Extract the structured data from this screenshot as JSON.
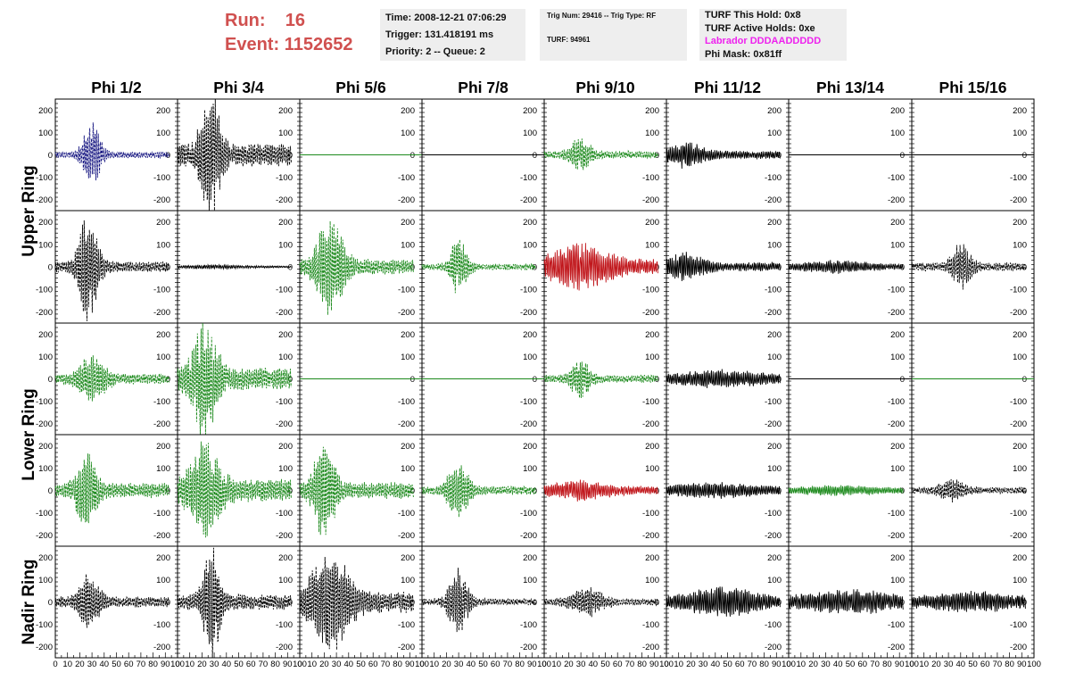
{
  "header": {
    "run_label": "Run:",
    "run_value": "16",
    "event_label": "Event:",
    "event_value": "1152652",
    "colors": {
      "run_event": "#d0504f",
      "labrador": "#ee22ee",
      "box_bg": "#eeeeee"
    }
  },
  "info_time": {
    "time": "Time: 2008-12-21 07:06:29",
    "trigger": "Trigger: 131.418191 ms",
    "priority": "Priority: 2 -- Queue: 2"
  },
  "info_trig": {
    "trig_line": "Trig Num: 29416 -- Trig Type: RF",
    "turf_line": "TURF: 94961"
  },
  "info_turf": {
    "this_hold": "TURF This Hold: 0x8",
    "active_holds": "TURF Active Holds: 0xe",
    "labrador": "Labrador DDDAADDDDD",
    "phi_mask": "Phi Mask: 0x81ff"
  },
  "chart_data": {
    "type": "line",
    "columns": [
      "Phi 1/2",
      "Phi 3/4",
      "Phi 5/6",
      "Phi 7/8",
      "Phi 9/10",
      "Phi 11/12",
      "Phi 13/14",
      "Phi 15/16"
    ],
    "ring_labels": [
      "Upper Ring",
      "Lower Ring",
      "Nadir Ring"
    ],
    "ylim": [
      -250,
      250
    ],
    "xlim": [
      0,
      100
    ],
    "y_ticks": [
      "200",
      "100",
      "0",
      "-100",
      "-200"
    ],
    "x_ticks": [
      "0",
      "10",
      "20",
      "30",
      "40",
      "50",
      "60",
      "70",
      "80",
      "90",
      "100"
    ],
    "series_colors": {
      "black": "#000000",
      "green": "#1d8a1d",
      "red": "#c0151a",
      "blue": "#141480"
    },
    "panels": [
      [
        {
          "style": "dashed",
          "color": "blue",
          "amp": 140,
          "peak": 30,
          "width": 8,
          "noise": 15
        },
        {
          "style": "dashed",
          "color": "black",
          "amp": 250,
          "peak": 27,
          "width": 9,
          "noise": 55
        },
        {
          "style": "flat",
          "color": "green",
          "amp": 0,
          "peak": 0,
          "width": 0,
          "noise": 0
        },
        {
          "style": "flat",
          "color": "black",
          "amp": 0,
          "peak": 0,
          "width": 0,
          "noise": 0
        },
        {
          "style": "dashed",
          "color": "green",
          "amp": 70,
          "peak": 30,
          "width": 9,
          "noise": 18
        },
        {
          "style": "solid",
          "color": "black",
          "amp": 50,
          "peak": 15,
          "width": 16,
          "noise": 18
        },
        {
          "style": "flat",
          "color": "black",
          "amp": 0,
          "peak": 0,
          "width": 0,
          "noise": 0
        },
        {
          "style": "flat",
          "color": "black",
          "amp": 0,
          "peak": 0,
          "width": 0,
          "noise": 0
        }
      ],
      [
        {
          "style": "dashed",
          "color": "black",
          "amp": 220,
          "peak": 27,
          "width": 9,
          "noise": 25
        },
        {
          "style": "solid",
          "color": "black",
          "amp": 6,
          "peak": 30,
          "width": 30,
          "noise": 4
        },
        {
          "style": "dashed",
          "color": "green",
          "amp": 200,
          "peak": 25,
          "width": 12,
          "noise": 35
        },
        {
          "style": "dashed",
          "color": "green",
          "amp": 120,
          "peak": 30,
          "width": 8,
          "noise": 15
        },
        {
          "style": "solid",
          "color": "red",
          "amp": 80,
          "peak": 30,
          "width": 25,
          "noise": 35
        },
        {
          "style": "solid",
          "color": "black",
          "amp": 50,
          "peak": 15,
          "width": 16,
          "noise": 20
        },
        {
          "style": "solid",
          "color": "black",
          "amp": 20,
          "peak": 40,
          "width": 30,
          "noise": 12
        },
        {
          "style": "dashed",
          "color": "black",
          "amp": 90,
          "peak": 40,
          "width": 9,
          "noise": 20
        }
      ],
      [
        {
          "style": "dashed",
          "color": "green",
          "amp": 100,
          "peak": 30,
          "width": 12,
          "noise": 25
        },
        {
          "style": "dashed",
          "color": "green",
          "amp": 250,
          "peak": 22,
          "width": 11,
          "noise": 55
        },
        {
          "style": "flat",
          "color": "green",
          "amp": 0,
          "peak": 0,
          "width": 0,
          "noise": 0
        },
        {
          "style": "flat",
          "color": "green",
          "amp": 0,
          "peak": 0,
          "width": 0,
          "noise": 0
        },
        {
          "style": "dashed",
          "color": "green",
          "amp": 75,
          "peak": 30,
          "width": 9,
          "noise": 18
        },
        {
          "style": "solid",
          "color": "black",
          "amp": 30,
          "peak": 45,
          "width": 40,
          "noise": 15
        },
        {
          "style": "flat",
          "color": "black",
          "amp": 0,
          "peak": 0,
          "width": 0,
          "noise": 0
        },
        {
          "style": "flat",
          "color": "green",
          "amp": 0,
          "peak": 0,
          "width": 0,
          "noise": 0
        }
      ],
      [
        {
          "style": "dashed",
          "color": "green",
          "amp": 140,
          "peak": 25,
          "width": 10,
          "noise": 35
        },
        {
          "style": "dashed",
          "color": "green",
          "amp": 180,
          "peak": 22,
          "width": 14,
          "noise": 55
        },
        {
          "style": "dashed",
          "color": "green",
          "amp": 220,
          "peak": 20,
          "width": 9,
          "noise": 40
        },
        {
          "style": "dashed",
          "color": "green",
          "amp": 110,
          "peak": 30,
          "width": 10,
          "noise": 20
        },
        {
          "style": "solid",
          "color": "red",
          "amp": 30,
          "peak": 30,
          "width": 25,
          "noise": 20
        },
        {
          "style": "solid",
          "color": "black",
          "amp": 25,
          "peak": 40,
          "width": 40,
          "noise": 15
        },
        {
          "style": "solid",
          "color": "green",
          "amp": 15,
          "peak": 40,
          "width": 40,
          "noise": 10
        },
        {
          "style": "dashed",
          "color": "black",
          "amp": 40,
          "peak": 33,
          "width": 12,
          "noise": 15
        }
      ],
      [
        {
          "style": "dashed",
          "color": "black",
          "amp": 120,
          "peak": 28,
          "width": 9,
          "noise": 25
        },
        {
          "style": "dashed",
          "color": "black",
          "amp": 230,
          "peak": 28,
          "width": 8,
          "noise": 35
        },
        {
          "style": "dashed",
          "color": "black",
          "amp": 200,
          "peak": 25,
          "width": 18,
          "noise": 50
        },
        {
          "style": "dashed",
          "color": "black",
          "amp": 150,
          "peak": 30,
          "width": 9,
          "noise": 15
        },
        {
          "style": "dashed",
          "color": "black",
          "amp": 60,
          "peak": 35,
          "width": 15,
          "noise": 15
        },
        {
          "style": "solid",
          "color": "black",
          "amp": 50,
          "peak": 45,
          "width": 30,
          "noise": 25
        },
        {
          "style": "solid",
          "color": "black",
          "amp": 35,
          "peak": 50,
          "width": 40,
          "noise": 25
        },
        {
          "style": "solid",
          "color": "black",
          "amp": 30,
          "peak": 50,
          "width": 40,
          "noise": 22
        }
      ]
    ]
  }
}
